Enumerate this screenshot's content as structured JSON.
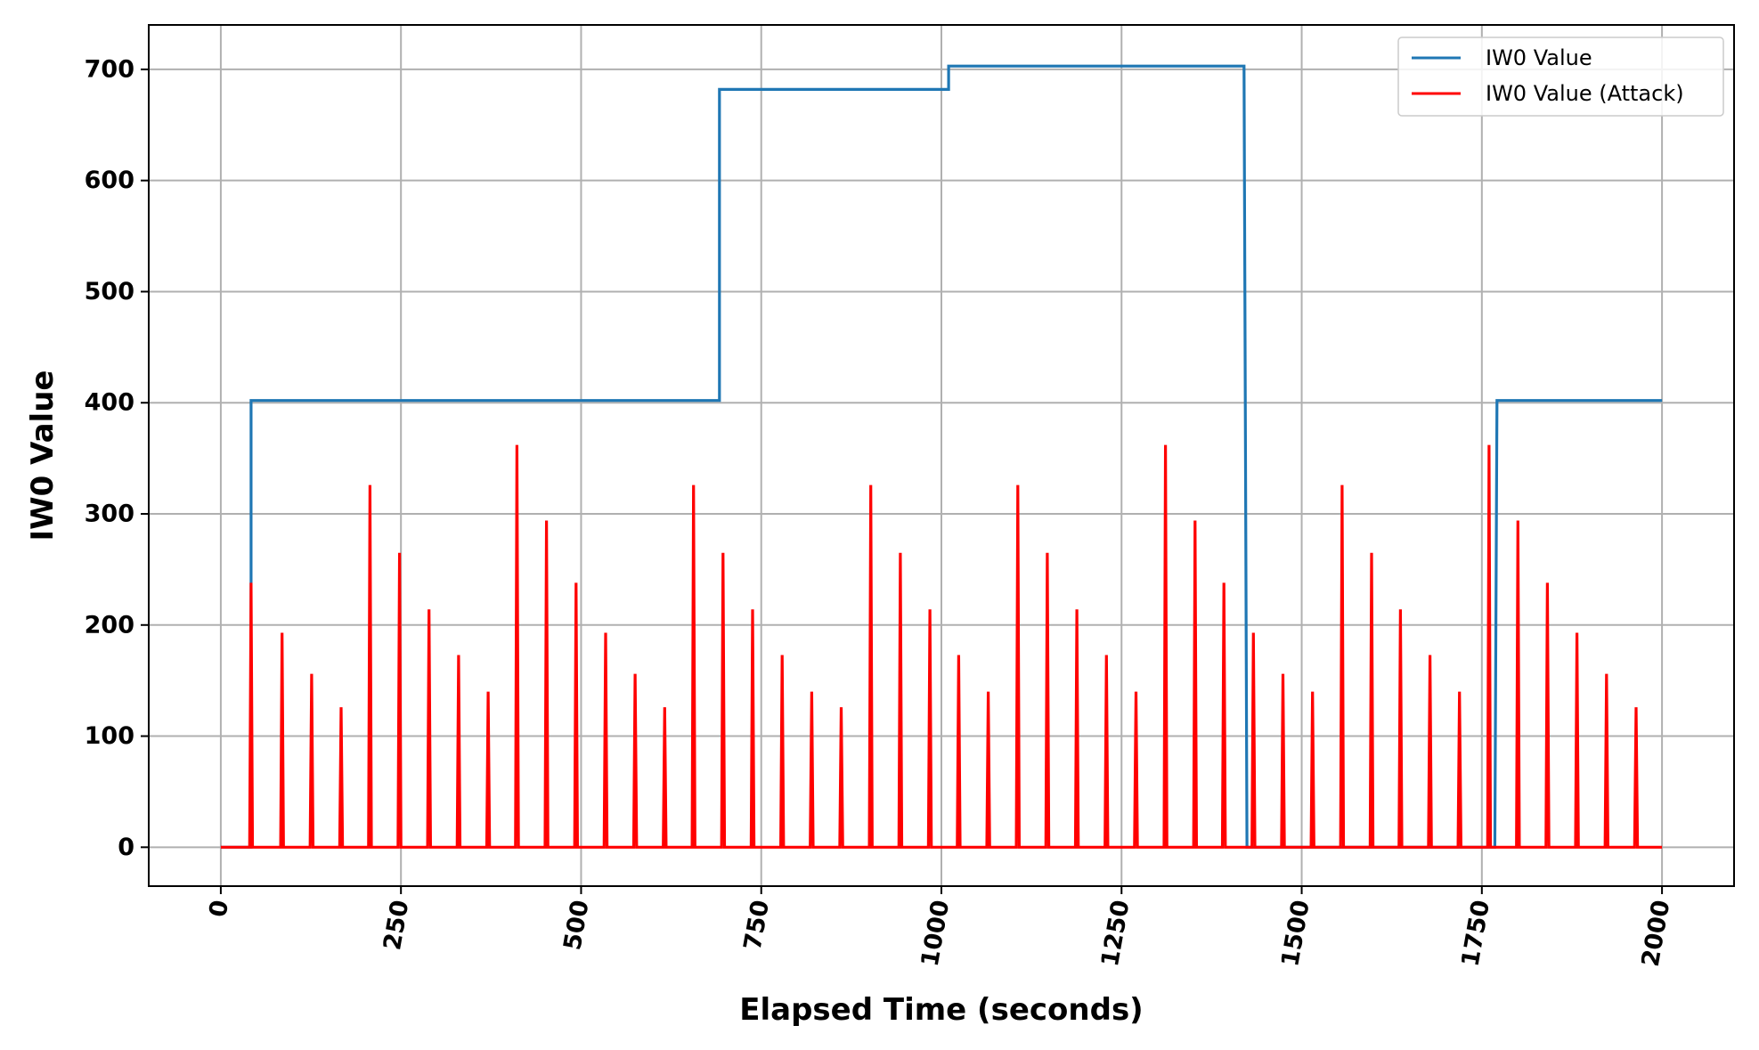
{
  "chart_data": {
    "type": "line",
    "title": "",
    "xlabel": "Elapsed Time (seconds)",
    "ylabel": "IW0 Value",
    "xlim": [
      -100,
      2100
    ],
    "ylim": [
      -35,
      740
    ],
    "x_ticks": [
      0,
      250,
      500,
      750,
      1000,
      1250,
      1500,
      1750,
      2000
    ],
    "y_ticks": [
      0,
      100,
      200,
      300,
      400,
      500,
      600,
      700
    ],
    "x_tick_rotation": 80,
    "grid": true,
    "legend_position": "top-right",
    "series": [
      {
        "name": "IW0 Value",
        "color": "#1f77b4",
        "shape": "step",
        "x": [
          0,
          42,
          42,
          692,
          692,
          1010,
          1010,
          1420,
          1424,
          1768,
          1771,
          2000
        ],
        "y": [
          0,
          0,
          402,
          402,
          682,
          682,
          703,
          703,
          0,
          0,
          402,
          402
        ]
      },
      {
        "name": "IW0 Value (Attack)",
        "color": "#ff0000",
        "shape": "spikes",
        "baseline": 0,
        "x": [
          42,
          85,
          126,
          167,
          207,
          248,
          289,
          330,
          371,
          411,
          452,
          493,
          534,
          575,
          616,
          656,
          697,
          738,
          779,
          820,
          861,
          902,
          943,
          984,
          1024,
          1065,
          1106,
          1147,
          1188,
          1229,
          1270,
          1311,
          1352,
          1392,
          1433,
          1474,
          1515,
          1556,
          1597,
          1637,
          1678,
          1719,
          1760,
          1800,
          1841,
          1882,
          1923,
          1964
        ],
        "y": [
          238,
          193,
          156,
          126,
          326,
          265,
          214,
          173,
          140,
          362,
          294,
          238,
          193,
          156,
          126,
          326,
          265,
          214,
          173,
          140,
          126,
          326,
          265,
          214,
          173,
          140,
          326,
          265,
          214,
          173,
          140,
          362,
          294,
          238,
          193,
          156,
          140,
          326,
          265,
          214,
          173,
          140,
          362,
          294,
          238,
          193,
          156,
          126
        ]
      }
    ]
  }
}
